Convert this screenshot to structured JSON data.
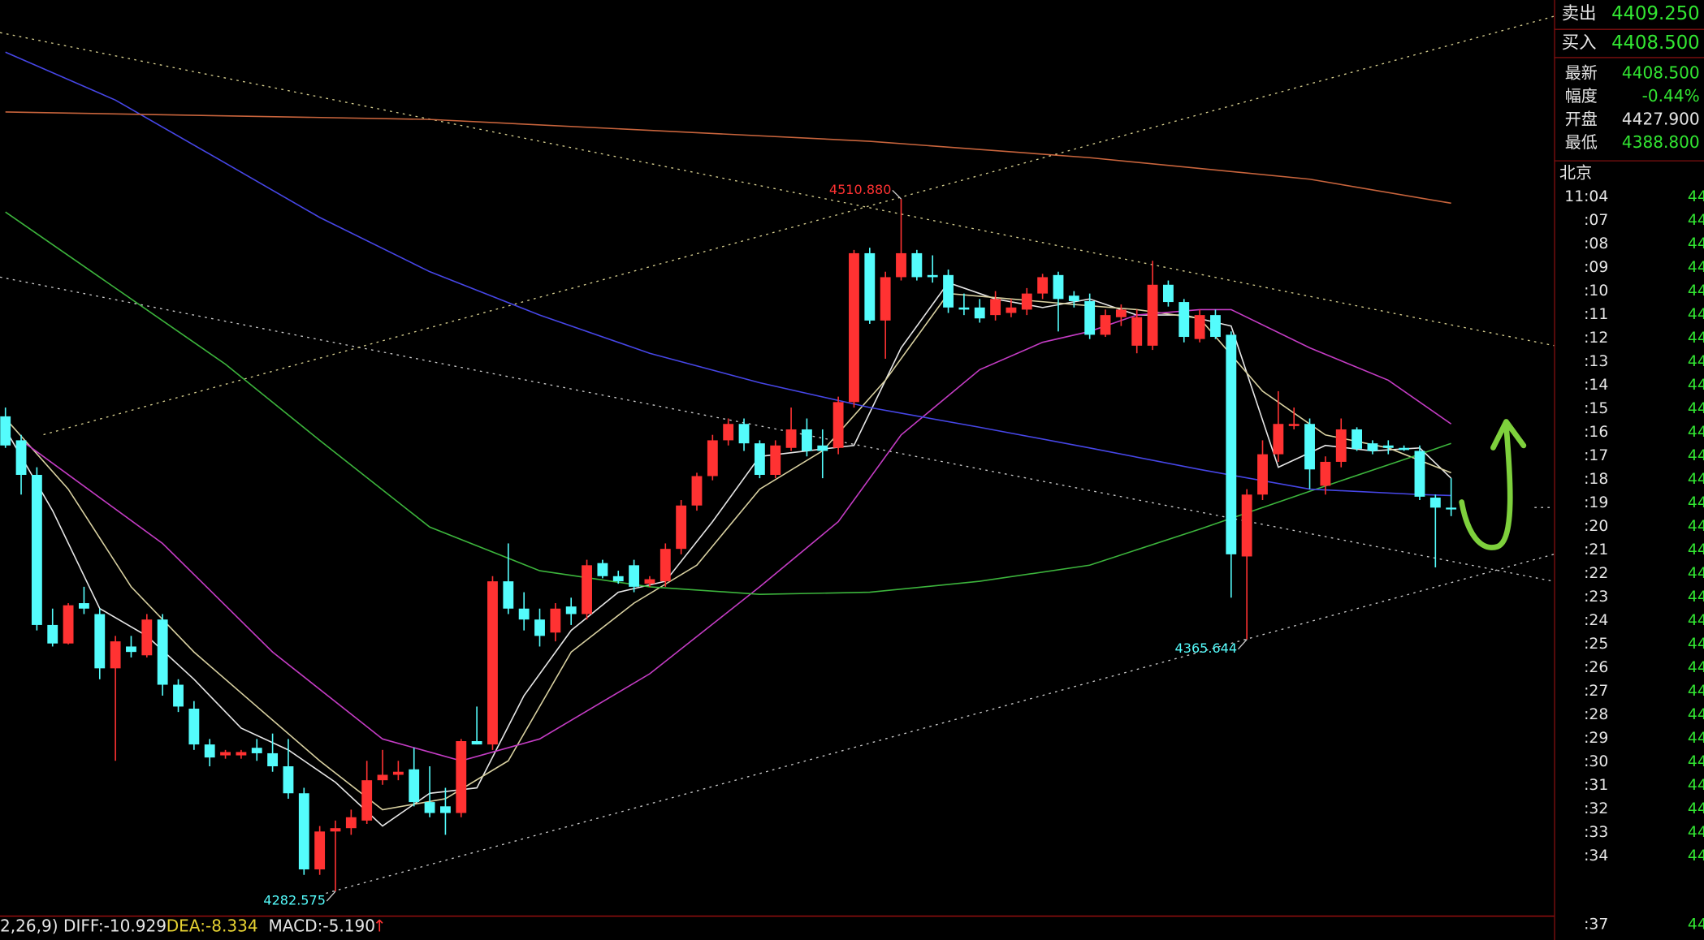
{
  "chart_data": {
    "type": "candlestick",
    "ylim": [
      4274.4,
      4576.5
    ],
    "colors": {
      "up": "#ff3232",
      "down": "#54fcfc"
    },
    "open": [
      4439.2,
      4431.3,
      4419.9,
      4370.4,
      4364.3,
      4377.6,
      4374.0,
      4356.1,
      4363.3,
      4360.4,
      4372.2,
      4350.7,
      4342.8,
      4331.0,
      4327.4,
      4327.4,
      4329.9,
      4328.1,
      4323.8,
      4314.9,
      4289.8,
      4302.3,
      4303.4,
      4305.9,
      4319.2,
      4321.0,
      4322.8,
      4312.0,
      4310.6,
      4308.4,
      4332.1,
      4331.0,
      4384.8,
      4375.8,
      4372.2,
      4367.9,
      4376.5,
      4374.0,
      4390.8,
      4386.5,
      4390.1,
      4384.0,
      4384.8,
      4395.5,
      4409.8,
      4419.5,
      4431.3,
      4436.7,
      4430.3,
      4419.9,
      4428.8,
      4434.9,
      4429.6,
      4428.8,
      4443.9,
      4493.0,
      4470.8,
      4485.1,
      4493.0,
      4485.8,
      4485.8,
      4475.1,
      4475.1,
      4472.6,
      4473.3,
      4474.4,
      4479.7,
      4485.8,
      4479.0,
      4477.2,
      4466.1,
      4471.9,
      4462.5,
      4462.5,
      4482.6,
      4476.9,
      4464.7,
      4472.6,
      4466.1,
      4393.0,
      4413.4,
      4426.7,
      4436.0,
      4436.7,
      4416.3,
      4424.2,
      4434.9,
      4430.3,
      4429.6,
      4428.8,
      4427.8,
      4412.4,
      4409.1
    ],
    "high": [
      4442.1,
      4433.1,
      4422.4,
      4375.8,
      4377.6,
      4383.0,
      4375.8,
      4366.8,
      4366.8,
      4374.0,
      4374.0,
      4352.5,
      4345.3,
      4332.8,
      4329.2,
      4329.2,
      4332.8,
      4334.6,
      4332.8,
      4316.7,
      4304.1,
      4305.9,
      4309.5,
      4325.6,
      4329.2,
      4325.6,
      4329.9,
      4323.8,
      4316.7,
      4332.8,
      4343.5,
      4386.5,
      4397.3,
      4381.2,
      4375.8,
      4377.6,
      4379.4,
      4391.9,
      4391.9,
      4388.3,
      4391.9,
      4386.5,
      4397.3,
      4411.6,
      4420.6,
      4433.1,
      4438.5,
      4438.5,
      4431.3,
      4431.3,
      4442.1,
      4438.5,
      4434.9,
      4445.7,
      4494.1,
      4494.8,
      4486.9,
      4510.88,
      4494.1,
      4492.3,
      4487.6,
      4479.7,
      4477.9,
      4480.5,
      4477.9,
      4481.5,
      4486.2,
      4486.9,
      4480.5,
      4479.7,
      4474.4,
      4476.1,
      4474.4,
      4490.5,
      4484.0,
      4477.9,
      4474.4,
      4474.4,
      4467.2,
      4415.2,
      4431.3,
      4447.5,
      4442.1,
      4438.5,
      4426.0,
      4438.5,
      4435.6,
      4431.3,
      4431.3,
      4429.6,
      4429.6,
      4413.4,
      4418.8
    ],
    "low": [
      4428.8,
      4413.4,
      4368.6,
      4363.3,
      4364.0,
      4374.0,
      4352.5,
      4325.6,
      4359.7,
      4359.7,
      4347.1,
      4341.7,
      4329.2,
      4323.8,
      4326.3,
      4326.3,
      4325.6,
      4322.0,
      4313.1,
      4288.0,
      4288.0,
      4282.575,
      4301.2,
      4304.8,
      4317.7,
      4319.2,
      4310.6,
      4307.0,
      4301.2,
      4307.0,
      4331.0,
      4329.2,
      4374.0,
      4368.6,
      4363.3,
      4365.0,
      4370.4,
      4372.2,
      4385.8,
      4384.0,
      4381.2,
      4383.0,
      4383.0,
      4393.7,
      4408.1,
      4418.1,
      4429.6,
      4427.8,
      4418.8,
      4418.8,
      4427.8,
      4426.0,
      4418.8,
      4426.7,
      4442.1,
      4469.7,
      4458.2,
      4484.0,
      4484.0,
      4483.3,
      4473.3,
      4472.6,
      4470.1,
      4470.8,
      4471.9,
      4472.6,
      4477.9,
      4467.2,
      4475.1,
      4464.7,
      4465.4,
      4469.0,
      4460.0,
      4461.1,
      4475.4,
      4463.6,
      4463.6,
      4464.7,
      4379.4,
      4365.644,
      4411.6,
      4424.2,
      4434.9,
      4415.2,
      4413.4,
      4422.4,
      4427.8,
      4426.7,
      4426.7,
      4427.8,
      4411.6,
      4389.4,
      4406.3
    ],
    "close": [
      4429.6,
      4419.9,
      4370.4,
      4364.3,
      4376.9,
      4375.8,
      4356.1,
      4365.0,
      4361.5,
      4372.2,
      4350.7,
      4343.5,
      4331.0,
      4326.7,
      4328.5,
      4328.5,
      4328.1,
      4323.8,
      4314.9,
      4289.8,
      4302.3,
      4303.4,
      4307.0,
      4319.2,
      4321.0,
      4322.0,
      4312.0,
      4308.4,
      4308.4,
      4332.1,
      4331.0,
      4384.8,
      4375.8,
      4372.2,
      4366.8,
      4375.8,
      4374.0,
      4390.1,
      4386.5,
      4384.8,
      4383.0,
      4385.5,
      4395.5,
      4409.8,
      4419.5,
      4431.3,
      4436.7,
      4430.3,
      4419.9,
      4429.6,
      4434.9,
      4427.8,
      4427.8,
      4443.9,
      4493.0,
      4470.8,
      4485.1,
      4493.0,
      4485.1,
      4485.1,
      4475.1,
      4474.4,
      4471.5,
      4477.9,
      4475.1,
      4479.7,
      4485.1,
      4477.9,
      4477.2,
      4466.1,
      4472.6,
      4474.4,
      4471.9,
      4482.6,
      4476.9,
      4465.4,
      4472.6,
      4465.4,
      4393.7,
      4413.4,
      4426.7,
      4436.7,
      4436.7,
      4421.7,
      4424.2,
      4434.9,
      4428.5,
      4427.8,
      4428.8,
      4428.1,
      4412.7,
      4409.1,
      4408.5
    ],
    "series": [
      {
        "color": "#e6e6e6",
        "x": [
          0,
          3,
          6,
          9,
          12,
          15,
          18,
          21,
          24,
          27,
          30,
          33,
          36,
          39,
          42,
          45,
          48,
          51,
          54,
          57,
          60,
          63,
          66,
          69,
          72,
          75,
          78,
          81,
          84,
          87,
          90,
          92
        ],
        "values": [
          4434.9,
          4408.1,
          4375.8,
          4366.8,
          4352.5,
          4336.4,
          4329.2,
          4318.5,
          4304.1,
          4314.9,
          4316.7,
          4347.1,
          4368.6,
          4381.2,
          4384.8,
          4404.5,
          4426.0,
          4427.8,
          4429.6,
          4461.8,
          4483.3,
          4477.9,
          4475.1,
          4477.9,
          4472.6,
          4472.6,
          4469.0,
          4422.4,
          4429.6,
          4427.8,
          4428.8,
          4418.8
        ]
      },
      {
        "color": "#d8d0a0",
        "x": [
          0,
          4,
          8,
          12,
          16,
          20,
          24,
          28,
          32,
          36,
          40,
          44,
          48,
          52,
          56,
          60,
          64,
          68,
          72,
          76,
          80,
          84,
          88,
          92
        ],
        "values": [
          4438.5,
          4415.2,
          4383.0,
          4361.5,
          4343.5,
          4325.6,
          4309.5,
          4313.1,
          4325.6,
          4361.5,
          4377.6,
          4390.1,
          4415.2,
          4427.8,
          4451.1,
          4479.7,
          4477.9,
          4476.1,
          4474.4,
          4471.5,
          4447.5,
          4433.1,
          4428.8,
          4420.6
        ]
      },
      {
        "color": "#c43cc4",
        "x": [
          1,
          10,
          17,
          24,
          29,
          34,
          41,
          48,
          53,
          57,
          62,
          66,
          69,
          72,
          76,
          78,
          83,
          88,
          92
        ],
        "values": [
          4431.3,
          4397.3,
          4361.5,
          4332.8,
          4325.6,
          4332.8,
          4354.3,
          4383.0,
          4404.5,
          4433.1,
          4454.6,
          4463.6,
          4467.2,
          4472.6,
          4474.4,
          4474.4,
          4461.8,
          4451.1,
          4436.7
        ]
      },
      {
        "color": "#3cb43c",
        "x": [
          0,
          7,
          14,
          20,
          27,
          34,
          41,
          48,
          55,
          62,
          69,
          76,
          83,
          90,
          92
        ],
        "values": [
          4506.6,
          4481.5,
          4456.4,
          4431.3,
          4402.7,
          4388.3,
          4383.0,
          4380.5,
          4381.2,
          4384.8,
          4390.1,
          4402.0,
          4414.5,
          4426.7,
          4430.3
        ]
      },
      {
        "color": "#4646e6",
        "x": [
          0,
          7,
          14,
          20,
          27,
          34,
          41,
          48,
          55,
          62,
          69,
          76,
          83,
          90,
          92
        ],
        "values": [
          4559.3,
          4543.5,
          4522.7,
          4504.8,
          4486.9,
          4472.6,
          4460.0,
          4450.3,
          4442.1,
          4435.6,
          4428.8,
          4421.7,
          4415.2,
          4413.4,
          4413.1
        ]
      },
      {
        "color": "#c8643c",
        "x": [
          0,
          27,
          55,
          69,
          83,
          92
        ],
        "values": [
          4539.6,
          4537.1,
          4529.9,
          4524.5,
          4517.4,
          4509.5
        ]
      }
    ],
    "extremes": [
      {
        "value": 4510.88,
        "label": "4510.880",
        "color": "#ff3232"
      },
      {
        "value": 4365.644,
        "label": "4365.644",
        "color": "#54fcfc"
      },
      {
        "value": 4282.575,
        "label": "4282.575",
        "color": "#54fcfc"
      }
    ]
  },
  "quote": {
    "top": [
      {
        "label": "卖出",
        "value": "4409.250",
        "color": "#32e632"
      },
      {
        "label": "买入",
        "value": "4408.500",
        "color": "#32e632"
      }
    ],
    "rows": [
      {
        "label": "最新",
        "value": "4408.500",
        "color": "#32e632"
      },
      {
        "label": "幅度",
        "value": "-0.44%",
        "color": "#32e632"
      },
      {
        "label": "开盘",
        "value": "4427.900",
        "color": "#e6e6e6"
      },
      {
        "label": "最低",
        "value": "4388.800",
        "color": "#32e632"
      }
    ],
    "city": "北京",
    "ticks": [
      {
        "time": "11:04",
        "price": "44"
      },
      {
        "time": ":07",
        "price": "44"
      },
      {
        "time": ":08",
        "price": "44"
      },
      {
        "time": ":09",
        "price": "44"
      },
      {
        "time": ":10",
        "price": "44"
      },
      {
        "time": ":11",
        "price": "44"
      },
      {
        "time": ":12",
        "price": "44"
      },
      {
        "time": ":13",
        "price": "44"
      },
      {
        "time": ":14",
        "price": "44"
      },
      {
        "time": ":15",
        "price": "44"
      },
      {
        "time": ":16",
        "price": "44"
      },
      {
        "time": ":17",
        "price": "44"
      },
      {
        "time": ":18",
        "price": "44"
      },
      {
        "time": ":19",
        "price": "44"
      },
      {
        "time": ":20",
        "price": "44"
      },
      {
        "time": ":21",
        "price": "44"
      },
      {
        "time": ":22",
        "price": "44"
      },
      {
        "time": ":23",
        "price": "44"
      },
      {
        "time": ":24",
        "price": "44"
      },
      {
        "time": ":25",
        "price": "44"
      },
      {
        "time": ":26",
        "price": "44"
      },
      {
        "time": ":27",
        "price": "44"
      },
      {
        "time": ":28",
        "price": "44"
      },
      {
        "time": ":29",
        "price": "44"
      },
      {
        "time": ":30",
        "price": "44"
      },
      {
        "time": ":31",
        "price": "44"
      },
      {
        "time": ":32",
        "price": "44"
      },
      {
        "time": ":33",
        "price": "44"
      },
      {
        "time": ":34",
        "price": "44"
      },
      {
        "time": ":37",
        "price": "44"
      }
    ]
  },
  "macd_bar": [
    {
      "text": "2,26,9) DIFF:-10.929",
      "color": "#e6e6e6"
    },
    {
      "text": "DEA:-8.334",
      "color": "#e6d232"
    },
    {
      "text": "MACD:-5.190",
      "color": "#e6e6e6"
    },
    {
      "text": "↑",
      "color": "#ff3232"
    }
  ]
}
